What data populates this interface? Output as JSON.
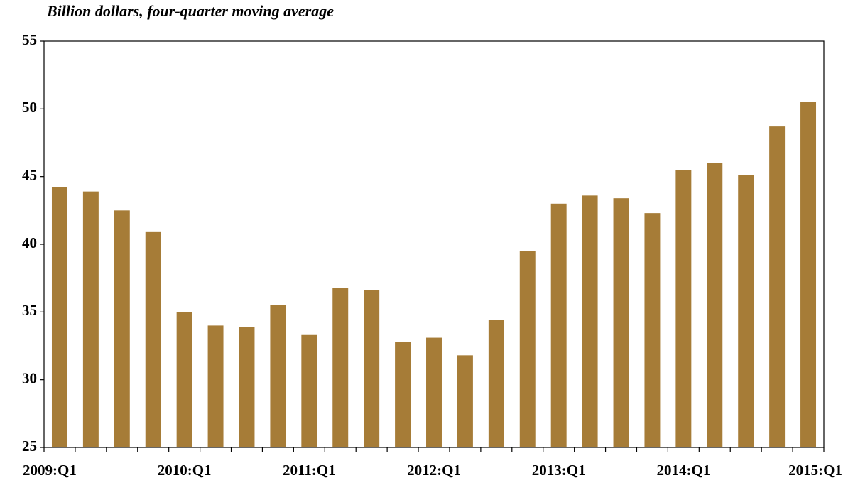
{
  "chart_data": {
    "type": "bar",
    "title": "Billion dollars, four-quarter moving average",
    "categories": [
      "2009:Q1",
      null,
      null,
      null,
      "2010:Q1",
      null,
      null,
      null,
      "2011:Q1",
      null,
      null,
      null,
      "2012:Q1",
      null,
      null,
      null,
      "2013:Q1",
      null,
      null,
      null,
      "2014:Q1",
      null,
      null,
      null,
      "2015:Q1"
    ],
    "values": [
      44.2,
      43.9,
      42.5,
      40.9,
      35.0,
      34.0,
      33.9,
      35.5,
      33.3,
      36.8,
      36.6,
      32.8,
      33.1,
      31.8,
      34.4,
      39.5,
      43.0,
      43.6,
      43.4,
      42.3,
      45.5,
      46.0,
      45.1,
      48.7,
      50.5
    ],
    "color": "#a67c37",
    "ylim": [
      25,
      55
    ],
    "yticks": [
      25,
      30,
      35,
      40,
      45,
      50,
      55
    ],
    "grid": false
  }
}
